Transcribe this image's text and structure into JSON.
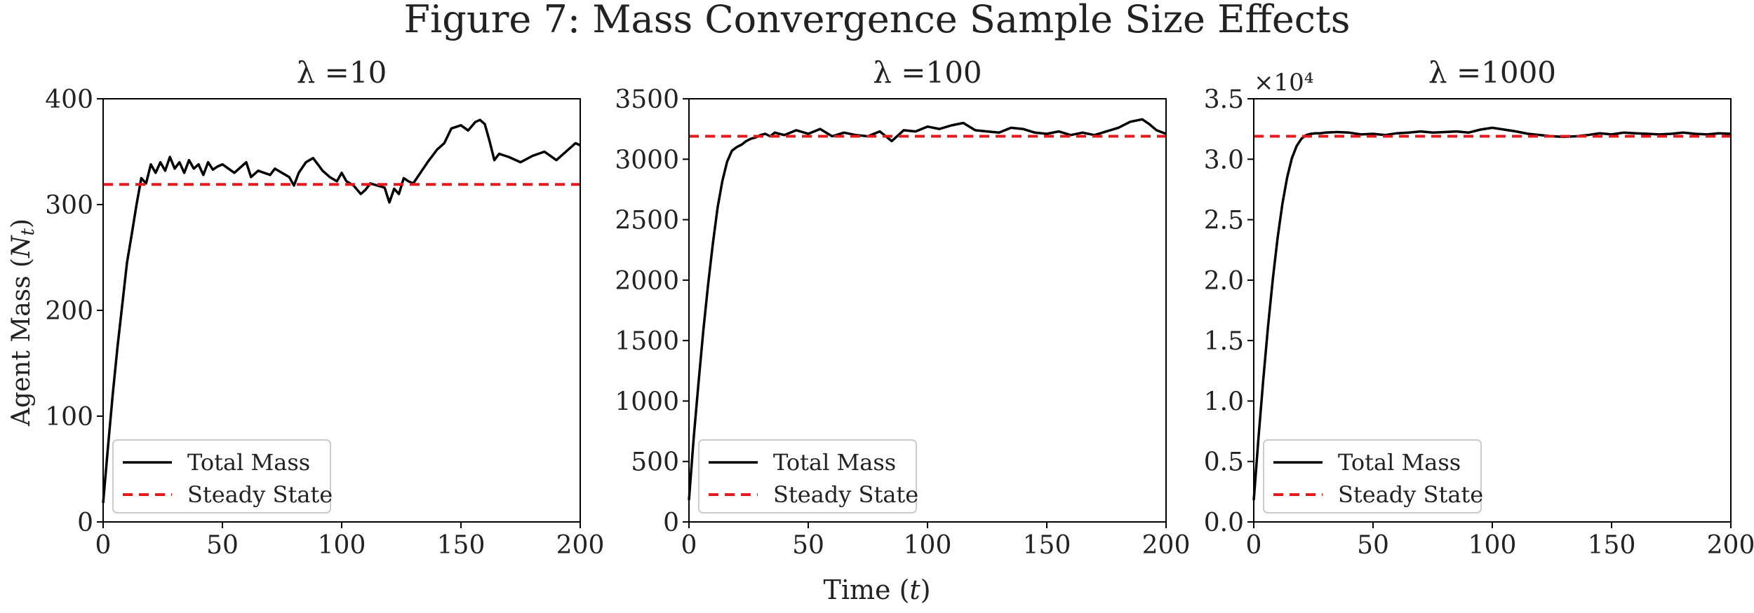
{
  "figure": {
    "title": "Figure 7: Mass Convergence Sample Size Effects",
    "shared_xlabel": "Time (t)",
    "shared_ylabel": "Agent Mass (N_t)"
  },
  "colors": {
    "total_mass": "#000000",
    "steady_state": "#e41a1c"
  },
  "legend": {
    "total_mass": "Total Mass",
    "steady_state": "Steady State"
  },
  "chart_data": [
    {
      "type": "line",
      "title": "λ =10",
      "xlim": [
        0,
        200
      ],
      "ylim": [
        0,
        400
      ],
      "xticks": [
        0,
        50,
        100,
        150,
        200
      ],
      "yticks": [
        0,
        100,
        200,
        300,
        400
      ],
      "ytick_labels": [
        "0",
        "100",
        "200",
        "300",
        "400"
      ],
      "multiplier": "",
      "legend_position": "lower-left",
      "series": [
        {
          "name": "Total Mass",
          "style": "solid",
          "x": [
            0,
            2,
            4,
            6,
            8,
            10,
            12,
            14,
            16,
            18,
            20,
            22,
            24,
            26,
            28,
            30,
            32,
            34,
            36,
            38,
            40,
            42,
            44,
            46,
            48,
            50,
            55,
            60,
            62,
            65,
            70,
            72,
            75,
            78,
            80,
            82,
            85,
            88,
            90,
            92,
            95,
            98,
            100,
            102,
            105,
            108,
            110,
            112,
            115,
            118,
            120,
            122,
            124,
            126,
            128,
            130,
            133,
            136,
            140,
            143,
            146,
            150,
            153,
            156,
            158,
            160,
            162,
            164,
            166,
            170,
            175,
            180,
            185,
            190,
            195,
            198,
            200
          ],
          "y": [
            18,
            70,
            120,
            165,
            205,
            245,
            272,
            300,
            325,
            320,
            338,
            330,
            340,
            332,
            345,
            334,
            340,
            330,
            342,
            334,
            338,
            328,
            340,
            333,
            336,
            338,
            330,
            340,
            326,
            332,
            328,
            334,
            330,
            326,
            318,
            330,
            340,
            344,
            338,
            332,
            326,
            322,
            330,
            322,
            318,
            310,
            314,
            320,
            318,
            316,
            302,
            315,
            310,
            325,
            322,
            320,
            330,
            340,
            352,
            358,
            372,
            375,
            370,
            378,
            380,
            376,
            360,
            342,
            348,
            345,
            340,
            346,
            350,
            342,
            352,
            358,
            356
          ]
        },
        {
          "name": "Steady State",
          "style": "dashed",
          "x": [
            0,
            200
          ],
          "y": [
            319,
            319
          ]
        }
      ]
    },
    {
      "type": "line",
      "title": "λ =100",
      "xlim": [
        0,
        200
      ],
      "ylim": [
        0,
        3500
      ],
      "xticks": [
        0,
        50,
        100,
        150,
        200
      ],
      "yticks": [
        0,
        500,
        1000,
        1500,
        2000,
        2500,
        3000,
        3500
      ],
      "ytick_labels": [
        "0",
        "500",
        "1000",
        "1500",
        "2000",
        "2500",
        "3000",
        "3500"
      ],
      "multiplier": "",
      "legend_position": "lower-left",
      "series": [
        {
          "name": "Total Mass",
          "style": "solid",
          "x": [
            0,
            2,
            4,
            6,
            8,
            10,
            12,
            14,
            16,
            18,
            20,
            22,
            24,
            26,
            28,
            30,
            32,
            34,
            36,
            40,
            45,
            50,
            55,
            60,
            65,
            70,
            75,
            80,
            85,
            90,
            95,
            100,
            105,
            110,
            115,
            120,
            125,
            130,
            135,
            140,
            145,
            150,
            155,
            160,
            165,
            170,
            175,
            180,
            185,
            190,
            193,
            196,
            200
          ],
          "y": [
            180,
            700,
            1150,
            1580,
            1960,
            2300,
            2600,
            2820,
            2980,
            3070,
            3100,
            3120,
            3150,
            3170,
            3180,
            3200,
            3210,
            3190,
            3220,
            3200,
            3240,
            3210,
            3250,
            3190,
            3220,
            3200,
            3190,
            3230,
            3150,
            3240,
            3230,
            3270,
            3250,
            3280,
            3300,
            3240,
            3230,
            3220,
            3260,
            3250,
            3220,
            3210,
            3230,
            3200,
            3220,
            3200,
            3230,
            3260,
            3310,
            3330,
            3290,
            3240,
            3210
          ]
        },
        {
          "name": "Steady State",
          "style": "dashed",
          "x": [
            0,
            200
          ],
          "y": [
            3190,
            3190
          ]
        }
      ]
    },
    {
      "type": "line",
      "title": "λ =1000",
      "xlim": [
        0,
        200
      ],
      "ylim": [
        0,
        35000
      ],
      "xticks": [
        0,
        50,
        100,
        150,
        200
      ],
      "yticks": [
        0,
        5000,
        10000,
        15000,
        20000,
        25000,
        30000,
        35000
      ],
      "ytick_labels": [
        "0.0",
        "0.5",
        "1.0",
        "1.5",
        "2.0",
        "2.5",
        "3.0",
        "3.5"
      ],
      "multiplier": "×10⁴",
      "legend_position": "lower-left",
      "series": [
        {
          "name": "Total Mass",
          "style": "solid",
          "x": [
            0,
            2,
            4,
            6,
            8,
            10,
            12,
            14,
            16,
            18,
            20,
            22,
            24,
            26,
            28,
            30,
            35,
            40,
            45,
            50,
            55,
            60,
            65,
            70,
            75,
            80,
            85,
            90,
            95,
            100,
            105,
            110,
            115,
            120,
            125,
            130,
            135,
            140,
            145,
            150,
            155,
            160,
            165,
            170,
            175,
            180,
            185,
            190,
            195,
            200
          ],
          "y": [
            1800,
            7000,
            11800,
            16200,
            20100,
            23500,
            26300,
            28500,
            30100,
            31100,
            31700,
            32000,
            32100,
            32150,
            32150,
            32200,
            32250,
            32200,
            32050,
            32100,
            32000,
            32150,
            32200,
            32300,
            32200,
            32250,
            32300,
            32200,
            32450,
            32600,
            32450,
            32300,
            32100,
            32000,
            31900,
            31850,
            31900,
            32000,
            32150,
            32050,
            32200,
            32150,
            32100,
            32050,
            32100,
            32200,
            32100,
            32050,
            32150,
            32100
          ]
        },
        {
          "name": "Steady State",
          "style": "dashed",
          "x": [
            0,
            200
          ],
          "y": [
            31900,
            31900
          ]
        }
      ]
    }
  ]
}
